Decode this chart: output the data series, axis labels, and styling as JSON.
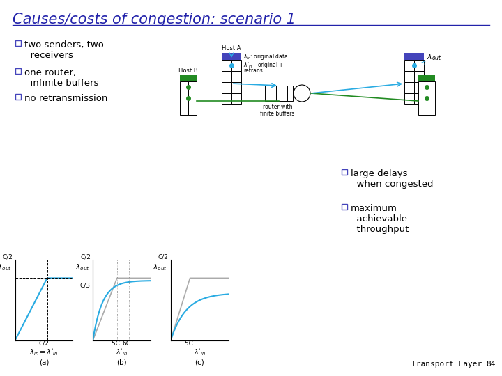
{
  "title": "Causes/costs of congestion: scenario 1",
  "title_color": "#2222AA",
  "title_fontsize": 15,
  "bg_color": "#FFFFFF",
  "bullet_color": "#4444BB",
  "bullets": [
    "two senders, two\n  receivers",
    "one router,\n  infinite buffers",
    "no retransmission"
  ],
  "right_bullets": [
    "large delays\n  when congested",
    "maximum\n  achievable\n  throughput"
  ],
  "footer": "Transport Layer",
  "footer_page": "84",
  "plot_line_color": "#29ABE2",
  "plot_ideal_color": "#AAAAAA",
  "diagram_line_color_blue": "#29ABE2",
  "diagram_green_color": "#228B22",
  "diagram_blue_top_color": "#4444BB",
  "diagram_teal_color": "#008B8B"
}
